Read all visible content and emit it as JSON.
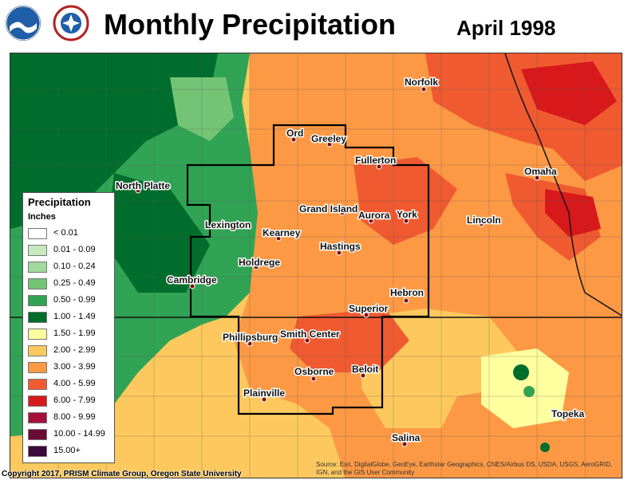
{
  "header": {
    "title": "Monthly Precipitation",
    "date": "April 1998"
  },
  "logos": [
    {
      "name": "noaa-logo",
      "text": "NOAA"
    },
    {
      "name": "nws-logo",
      "text": "NATIONAL WEATHER SERVICE"
    }
  ],
  "legend": {
    "title": "Precipitation",
    "unit": "Inches",
    "items": [
      {
        "label": "< 0.01",
        "color": "#ffffff"
      },
      {
        "label": "0.01 - 0.09",
        "color": "#c7e9c0"
      },
      {
        "label": "0.10 - 0.24",
        "color": "#a1d99b"
      },
      {
        "label": "0.25 - 0.49",
        "color": "#74c476"
      },
      {
        "label": "0.50 - 0.99",
        "color": "#31a354"
      },
      {
        "label": "1.00 - 1.49",
        "color": "#006d2c"
      },
      {
        "label": "1.50 - 1.99",
        "color": "#ffffa0"
      },
      {
        "label": "2.00 - 2.99",
        "color": "#fdc95e"
      },
      {
        "label": "3.00 - 3.99",
        "color": "#fd9945"
      },
      {
        "label": "4.00 - 5.99",
        "color": "#f05a30"
      },
      {
        "label": "6.00 - 7.99",
        "color": "#d7191c"
      },
      {
        "label": "8.00 - 9.99",
        "color": "#a50f3a"
      },
      {
        "label": "10.00 - 14.99",
        "color": "#6b0a35"
      },
      {
        "label": "15.00+",
        "color": "#3a0b3a"
      }
    ]
  },
  "cities": [
    {
      "name": "Norfolk"
    },
    {
      "name": "Ord"
    },
    {
      "name": "Greeley"
    },
    {
      "name": "Fullerton"
    },
    {
      "name": "North Platte"
    },
    {
      "name": "Omaha"
    },
    {
      "name": "Grand Island"
    },
    {
      "name": "Aurora"
    },
    {
      "name": "York"
    },
    {
      "name": "Lexington"
    },
    {
      "name": "Lincoln"
    },
    {
      "name": "Kearney"
    },
    {
      "name": "Hastings"
    },
    {
      "name": "Holdrege"
    },
    {
      "name": "Cambridge"
    },
    {
      "name": "Hebron"
    },
    {
      "name": "Superior"
    },
    {
      "name": "Phillipsburg"
    },
    {
      "name": "Smith Center"
    },
    {
      "name": "Osborne"
    },
    {
      "name": "Beloit"
    },
    {
      "name": "Plainville"
    },
    {
      "name": "Topeka"
    },
    {
      "name": "Salina"
    }
  ],
  "footer": {
    "copyright": "Copyright 2017, PRISM Climate Group, Oregon State University",
    "source": "Source: Esri, DigitalGlobe, GeoEye, Earthstar Geographics, CNES/Airbus DS, USDA, USGS, AeroGRID, IGN, and the GIS User Community"
  }
}
